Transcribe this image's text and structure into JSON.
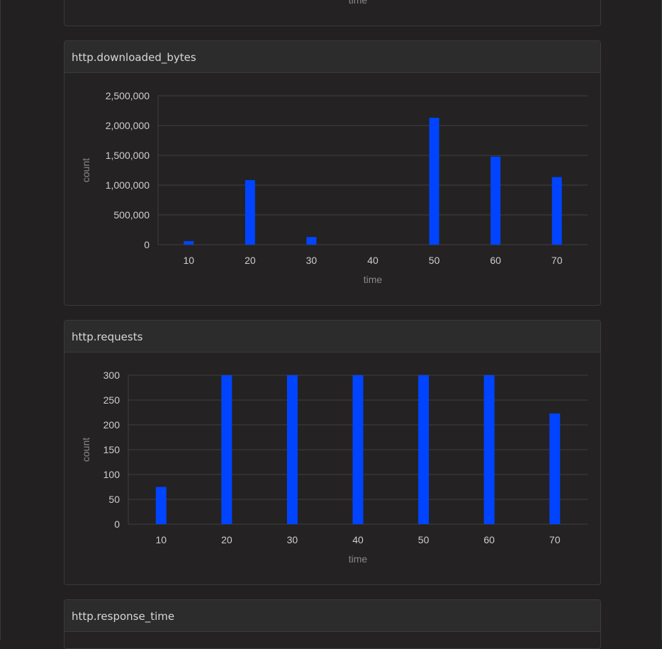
{
  "cards": {
    "top_partial": {
      "xlabel": "time"
    },
    "downloaded": {
      "title": "http.downloaded_bytes"
    },
    "requests": {
      "title": "http.requests"
    },
    "response_time": {
      "title": "http.response_time"
    }
  },
  "colors": {
    "bar": "#0044ff",
    "grid": "#3f3f3f",
    "background": "#222021"
  },
  "chart_data": [
    {
      "type": "bar",
      "title": "http.downloaded_bytes",
      "categories": [
        "10",
        "20",
        "30",
        "40",
        "50",
        "60",
        "70"
      ],
      "values": [
        60000,
        1085000,
        130000,
        0,
        2130000,
        1480000,
        1135000
      ],
      "xlabel": "time",
      "ylabel": "count",
      "ylim": [
        0,
        2500000
      ],
      "yticks": [
        0,
        500000,
        1000000,
        1500000,
        2000000,
        2500000
      ],
      "ytick_labels": [
        "0",
        "500,000",
        "1,000,000",
        "1,500,000",
        "2,000,000",
        "2,500,000"
      ],
      "grid": true,
      "legend": "none"
    },
    {
      "type": "bar",
      "title": "http.requests",
      "categories": [
        "10",
        "20",
        "30",
        "40",
        "50",
        "60",
        "70"
      ],
      "values": [
        75,
        300,
        300,
        300,
        300,
        300,
        223
      ],
      "xlabel": "time",
      "ylabel": "count",
      "ylim": [
        0,
        300
      ],
      "yticks": [
        0,
        50,
        100,
        150,
        200,
        250,
        300
      ],
      "ytick_labels": [
        "0",
        "50",
        "100",
        "150",
        "200",
        "250",
        "300"
      ],
      "grid": true,
      "legend": "none"
    }
  ]
}
